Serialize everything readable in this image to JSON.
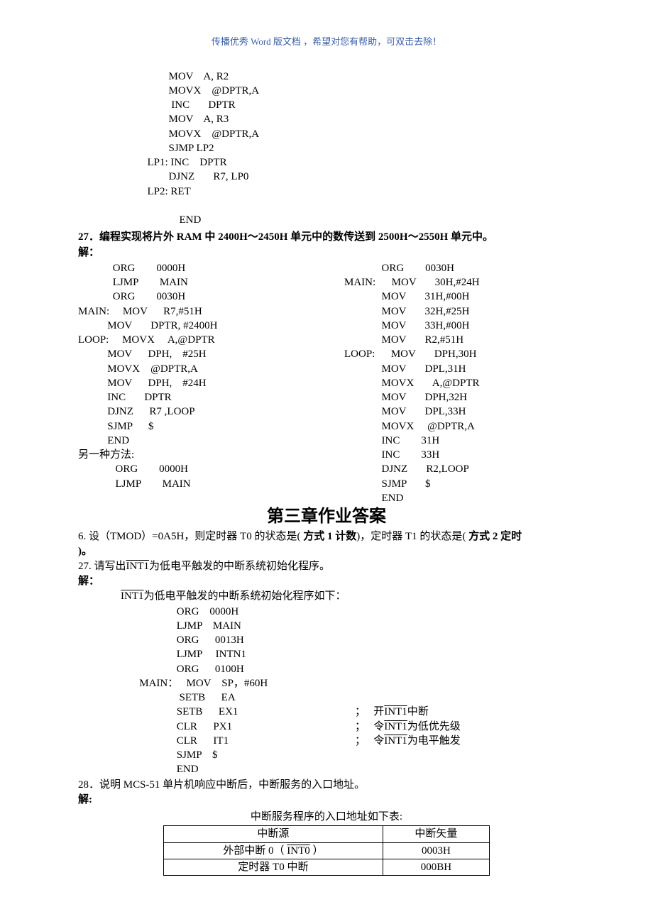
{
  "header": "传播优秀 Word 版文档 ，希望对您有帮助，可双击去除！",
  "colors": {
    "header": "#385da7",
    "body": "#000000",
    "background": "#ffffff",
    "table_border": "#000000"
  },
  "typography": {
    "body_fontsize_pt": 11,
    "header_fontsize_pt": 10,
    "title_fontsize_pt": 18,
    "font_family": "SimSun / Times New Roman"
  },
  "topCode": [
    "          MOV    A, R2",
    "          MOVX    @DPTR,A",
    "           INC       DPTR",
    "          MOV    A, R3",
    "          MOVX    @DPTR,A",
    "          SJMP LP2",
    "  LP1: INC    DPTR",
    "          DJNZ       R7, LP0",
    "  LP2: RET",
    "",
    "              END"
  ],
  "q27": {
    "title_prefix": "27．编程实现将片外 RAM 中 2400H～2450H 单元中的数传送到 2500H～2550H 单元中。",
    "answer_label": "解：",
    "left": [
      "             ORG        0000H",
      "             LJMP        MAIN",
      "             ORG        0030H",
      "MAIN:     MOV      R7,#51H",
      "           MOV       DPTR, #2400H",
      "LOOP:     MOVX     A,@DPTR",
      "           MOV      DPH,    #25H",
      "           MOVX    @DPTR,A",
      "           MOV      DPH,    #24H",
      "           INC       DPTR",
      "           DJNZ      R7 ,LOOP",
      "           SJMP      $",
      "           END",
      "另一种方法:",
      "              ORG        0000H",
      "              LJMP        MAIN"
    ],
    "right": [
      "              ORG        0030H",
      "MAIN:      MOV       30H,#24H",
      "              MOV       31H,#00H",
      "              MOV       32H,#25H",
      "              MOV       33H,#00H",
      "              MOV       R2,#51H",
      "LOOP:      MOV       DPH,30H",
      "              MOV       DPL,31H",
      "              MOVX       A,@DPTR",
      "              MOV       DPH,32H",
      "              MOV       DPL,33H",
      "              MOVX     @DPTR,A",
      "              INC        31H",
      "              INC        33H",
      "              DJNZ       R2,LOOP",
      "              SJMP       $",
      "              END"
    ]
  },
  "chapter_title": "第三章作业答案",
  "q6": {
    "prefix": "6.  设（TMOD）=0A5H，则定时器 T0 的状态是(  ",
    "ans1": "方式 1 计数",
    "mid": ")，定时器 T1 的状态是(  ",
    "ans2": "方式 2 定时",
    "suffix": ")。"
  },
  "q27b": {
    "text_before": "27.  请写出",
    "int1": "INT1",
    "text_after": "为低电平触发的中断系统初始化程序。",
    "answer_label": "解：",
    "intro_before": "为低电平触发的中断系统初始化程序如下：",
    "code_lines": [
      {
        "l": "                     ORG    0000H",
        "r": ""
      },
      {
        "l": "                     LJMP    MAIN",
        "r": ""
      },
      {
        "l": "                     ORG      0013H",
        "r": ""
      },
      {
        "l": "                     LJMP     INTN1",
        "r": ""
      },
      {
        "l": "                     ORG      0100H",
        "r": ""
      },
      {
        "l": "       MAIN：   MOV    SP，#60H",
        "r": ""
      },
      {
        "l": "                      SETB      EA",
        "r": ""
      },
      {
        "l": "                     SETB      EX1",
        "r": "；   开"
      },
      {
        "l": "                     CLR      PX1",
        "r": "；   令"
      },
      {
        "l": "                     CLR      IT1",
        "r": "；   令"
      },
      {
        "l": "                     SJMP    $",
        "r": ""
      },
      {
        "l": "                     END",
        "r": ""
      }
    ],
    "comments": [
      "中断",
      "为低优先级",
      "为电平触发"
    ]
  },
  "q28": {
    "text": "28．说明 MCS-51 单片机响应中断后，中断服务的入口地址。",
    "answer_label": "解:"
  },
  "table": {
    "caption": "中断服务程序的入口地址如下表:",
    "header": [
      "中断源",
      "中断矢量"
    ],
    "rows": [
      [
        "外部中断 0（ INT0 ）",
        "0003H"
      ],
      [
        "定时器 T0 中断",
        "000BH"
      ]
    ],
    "overline_in_row0": "INT0"
  }
}
